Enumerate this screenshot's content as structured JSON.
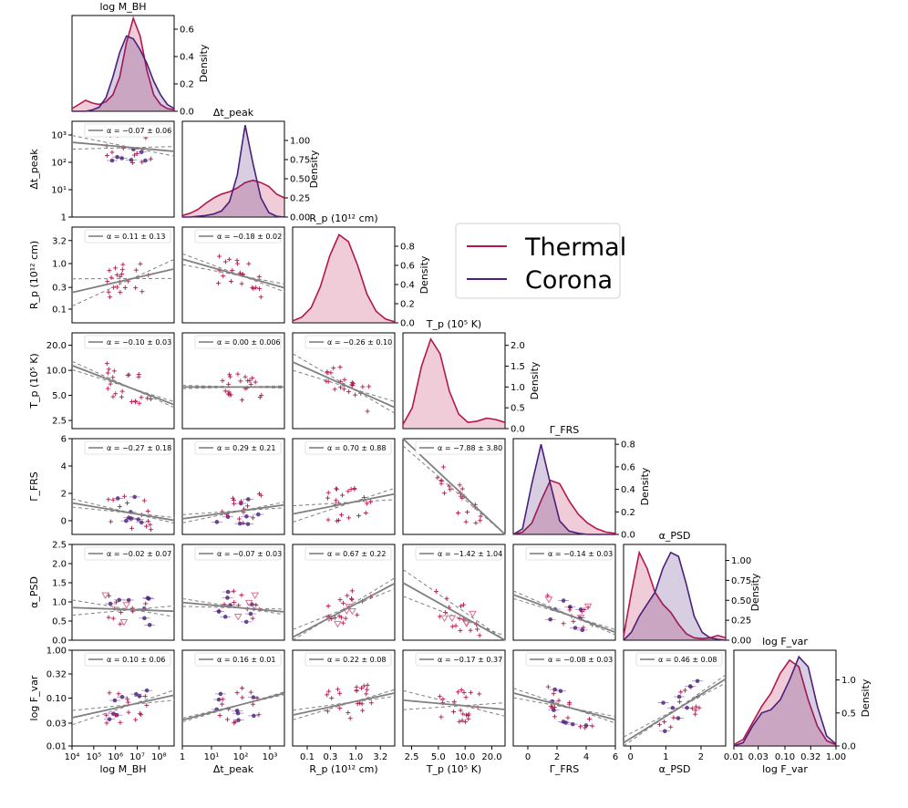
{
  "chart_data": {
    "type": "corner-plot",
    "colors": {
      "thermal": "#b5174b",
      "corona": "#4b1f7a",
      "fit": "#808080",
      "upper_limit": "#d4738c"
    },
    "legend": {
      "position": "upper-right",
      "entries": [
        {
          "name": "Thermal",
          "color": "#b5174b"
        },
        {
          "name": "Corona",
          "color": "#4b1f7a"
        }
      ]
    },
    "variables": [
      {
        "key": "mbh",
        "title": "log M_BH",
        "label": "log M_BH",
        "log": true,
        "range": [
          4,
          8.7
        ],
        "ticks": [
          4,
          5,
          6,
          7,
          8
        ],
        "tick_labels": [
          "10⁴",
          "10⁵",
          "10⁶",
          "10⁷",
          "10⁸"
        ],
        "density": {
          "max": 0.7,
          "ticks": [
            0,
            0.2,
            0.4,
            0.6
          ],
          "tick_labels": [
            "0.0",
            "0.2",
            "0.4",
            "0.6"
          ],
          "label": "Density",
          "thermal": [
            0.02,
            0.05,
            0.08,
            0.06,
            0.05,
            0.07,
            0.12,
            0.25,
            0.5,
            0.68,
            0.55,
            0.3,
            0.12,
            0.05,
            0.02,
            0.01
          ],
          "corona": [
            0.0,
            0.0,
            0.0,
            0.01,
            0.03,
            0.1,
            0.25,
            0.43,
            0.55,
            0.53,
            0.45,
            0.35,
            0.22,
            0.12,
            0.05,
            0.02
          ]
        }
      },
      {
        "key": "dtpeak",
        "title": "Δt_peak",
        "label": "Δt_peak",
        "log": true,
        "range": [
          0,
          3.5
        ],
        "ticks": [
          0,
          1,
          2,
          3
        ],
        "tick_labels": [
          "1",
          "10¹",
          "10²",
          "10³"
        ],
        "density": {
          "max": 1.25,
          "ticks": [
            0,
            0.25,
            0.5,
            0.75,
            1.0
          ],
          "tick_labels": [
            "0.00",
            "0.25",
            "0.50",
            "0.75",
            "1.00"
          ],
          "label": "Density",
          "thermal": [
            0.02,
            0.05,
            0.1,
            0.18,
            0.25,
            0.3,
            0.33,
            0.38,
            0.45,
            0.48,
            0.45,
            0.4,
            0.3,
            0.25
          ],
          "corona": [
            0.0,
            0.0,
            0.01,
            0.02,
            0.04,
            0.08,
            0.2,
            0.55,
            1.2,
            0.7,
            0.25,
            0.06,
            0.01,
            0.0
          ]
        }
      },
      {
        "key": "rp",
        "title": "R_p (10¹² cm)",
        "label": "R_p (10¹² cm)",
        "log": true,
        "range": [
          -1.3,
          0.8
        ],
        "ticks": [
          -1,
          -0.523,
          0,
          0.505
        ],
        "tick_labels": [
          "0.1",
          "0.3",
          "1.0",
          "3.2"
        ],
        "density": {
          "max": 1.0,
          "ticks": [
            0,
            0.2,
            0.4,
            0.6,
            0.8
          ],
          "tick_labels": [
            "0.0",
            "0.2",
            "0.4",
            "0.6",
            "0.8"
          ],
          "label": "Density",
          "thermal": [
            0.02,
            0.06,
            0.16,
            0.38,
            0.7,
            0.92,
            0.85,
            0.6,
            0.3,
            0.12,
            0.04,
            0.01
          ],
          "corona": []
        }
      },
      {
        "key": "tp",
        "title": "T_p (10⁵ K)",
        "label": "T_p (10⁵ K)",
        "log": true,
        "range": [
          0.3,
          1.45
        ],
        "ticks": [
          0.398,
          0.699,
          1.0,
          1.301
        ],
        "tick_labels": [
          "2.5",
          "5.0",
          "10.0",
          "20.0"
        ],
        "density": {
          "max": 2.3,
          "ticks": [
            0,
            0.5,
            1.0,
            1.5,
            2.0
          ],
          "tick_labels": [
            "0.0",
            "0.5",
            "1.0",
            "1.5",
            "2.0"
          ],
          "label": "Density",
          "thermal": [
            0.1,
            0.5,
            1.5,
            2.15,
            1.8,
            0.9,
            0.35,
            0.15,
            0.18,
            0.25,
            0.22,
            0.15
          ],
          "corona": []
        }
      },
      {
        "key": "gfrs",
        "title": "Γ_FRS",
        "label": "Γ_FRS",
        "log": false,
        "range": [
          -1,
          6
        ],
        "ticks": [
          0,
          2,
          4,
          6
        ],
        "tick_labels": [
          "0",
          "2",
          "4",
          "6"
        ],
        "density": {
          "max": 0.85,
          "ticks": [
            0,
            0.2,
            0.4,
            0.6,
            0.8
          ],
          "tick_labels": [
            "0.0",
            "0.2",
            "0.4",
            "0.6",
            "0.8"
          ],
          "label": "Density",
          "thermal": [
            0.0,
            0.02,
            0.1,
            0.3,
            0.48,
            0.45,
            0.3,
            0.18,
            0.1,
            0.05,
            0.02,
            0.01
          ],
          "corona": [
            0.0,
            0.05,
            0.45,
            0.8,
            0.45,
            0.12,
            0.03,
            0.01,
            0.0,
            0.0,
            0.0,
            0.0
          ]
        },
        "row_range": [
          -1,
          6
        ],
        "row_ticks": [
          0,
          2,
          4,
          6
        ],
        "row_tick_labels": [
          "0",
          "2",
          "4",
          "6"
        ]
      },
      {
        "key": "apsd",
        "title": "α_PSD",
        "label": "α_PSD",
        "log": false,
        "range": [
          -0.2,
          2.7
        ],
        "ticks": [
          0,
          1,
          2
        ],
        "tick_labels": [
          "0",
          "1",
          "2"
        ],
        "density": {
          "max": 1.2,
          "ticks": [
            0,
            0.25,
            0.5,
            0.75,
            1.0
          ],
          "tick_labels": [
            "0.00",
            "0.25",
            "0.50",
            "0.75",
            "1.00"
          ],
          "label": "Density",
          "thermal": [
            0.05,
            0.6,
            1.1,
            0.9,
            0.6,
            0.45,
            0.35,
            0.2,
            0.08,
            0.03,
            0.02,
            0.03,
            0.06,
            0.03
          ],
          "corona": [
            0.0,
            0.1,
            0.3,
            0.45,
            0.6,
            0.9,
            1.1,
            1.05,
            0.7,
            0.3,
            0.1,
            0.03,
            0.01,
            0.0
          ]
        },
        "row_range": [
          0,
          2.5
        ],
        "row_ticks": [
          0,
          0.5,
          1.0,
          1.5,
          2.0,
          2.5
        ],
        "row_tick_labels": [
          "0.0",
          "0.5",
          "1.0",
          "1.5",
          "2.0",
          "2.5"
        ]
      },
      {
        "key": "fvar",
        "title": "log F_var",
        "label": "log F_var",
        "log": true,
        "range": [
          -2,
          0
        ],
        "ticks": [
          -2,
          -1.523,
          -1,
          -0.495,
          0
        ],
        "tick_labels": [
          "0.01",
          "0.03",
          "0.10",
          "0.32",
          "1.00"
        ],
        "density": {
          "max": 1.45,
          "ticks": [
            0,
            0.5,
            1.0
          ],
          "tick_labels": [
            "0.0",
            "0.5",
            "1.0"
          ],
          "label": "Density",
          "thermal": [
            0.02,
            0.1,
            0.35,
            0.6,
            0.8,
            1.1,
            1.3,
            1.2,
            0.7,
            0.3,
            0.08,
            0.02
          ],
          "corona": [
            0.0,
            0.05,
            0.3,
            0.5,
            0.55,
            0.7,
            1.0,
            1.35,
            1.2,
            0.6,
            0.15,
            0.03
          ]
        }
      }
    ],
    "fits": [
      {
        "row": 1,
        "col": 0,
        "label": "α = −0.07 ± 0.06",
        "slope": -0.07,
        "yc": 2.55,
        "band": 0.25
      },
      {
        "row": 2,
        "col": 0,
        "label": "α = 0.11 ± 0.13",
        "slope": 0.11,
        "yc": -0.35,
        "band": 0.3
      },
      {
        "row": 2,
        "col": 1,
        "label": "α = −0.18 ± 0.02",
        "slope": -0.18,
        "yc": -0.25,
        "band": 0.12
      },
      {
        "row": 3,
        "col": 0,
        "label": "α = −0.10 ± 0.03",
        "slope": -0.1,
        "yc": 0.8,
        "band": 0.05
      },
      {
        "row": 3,
        "col": 1,
        "label": "α = 0.00 ± 0.006",
        "slope": 0.0,
        "yc": 0.8,
        "band": 0.02
      },
      {
        "row": 3,
        "col": 2,
        "label": "α = −0.26 ± 0.10",
        "slope": -0.26,
        "yc": 0.8,
        "band": 0.1
      },
      {
        "row": 4,
        "col": 0,
        "label": "α = −0.27 ± 0.18",
        "slope": -0.27,
        "yc": 0.6,
        "band": 0.3
      },
      {
        "row": 4,
        "col": 1,
        "label": "α = 0.29 ± 0.21",
        "slope": 0.29,
        "yc": 0.7,
        "band": 0.3
      },
      {
        "row": 4,
        "col": 2,
        "label": "α = 0.70 ± 0.88",
        "slope": 0.7,
        "yc": 1.3,
        "band": 0.6
      },
      {
        "row": 4,
        "col": 3,
        "label": "α = −7.88 ± 3.80",
        "slope": -7.88,
        "yc": 1.5,
        "band": 1.0
      },
      {
        "row": 5,
        "col": 0,
        "label": "α = −0.02 ± 0.07",
        "slope": -0.02,
        "yc": 0.8,
        "band": 0.2
      },
      {
        "row": 5,
        "col": 1,
        "label": "α = −0.07 ± 0.03",
        "slope": -0.07,
        "yc": 0.85,
        "band": 0.1
      },
      {
        "row": 5,
        "col": 2,
        "label": "α = 0.67 ± 0.22",
        "slope": 0.67,
        "yc": 0.85,
        "band": 0.2
      },
      {
        "row": 5,
        "col": 3,
        "label": "α = −1.42 ± 1.04",
        "slope": -1.42,
        "yc": 0.6,
        "band": 0.35
      },
      {
        "row": 5,
        "col": 4,
        "label": "α = −0.14 ± 0.03",
        "slope": -0.14,
        "yc": 0.65,
        "band": 0.1
      },
      {
        "row": 6,
        "col": 0,
        "label": "α = 0.10 ± 0.06",
        "slope": 0.1,
        "yc": -1.15,
        "band": 0.15
      },
      {
        "row": 6,
        "col": 1,
        "label": "α = 0.16 ± 0.01",
        "slope": 0.16,
        "yc": -1.15,
        "band": 0.04
      },
      {
        "row": 6,
        "col": 2,
        "label": "α = 0.22 ± 0.08",
        "slope": 0.22,
        "yc": -1.1,
        "band": 0.1
      },
      {
        "row": 6,
        "col": 3,
        "label": "α = −0.17 ± 0.37",
        "slope": -0.17,
        "yc": -1.15,
        "band": 0.2
      },
      {
        "row": 6,
        "col": 4,
        "label": "α = −0.08 ± 0.03",
        "slope": -0.08,
        "yc": -1.2,
        "band": 0.1
      },
      {
        "row": 6,
        "col": 5,
        "label": "α = 0.46 ± 0.08",
        "slope": 0.46,
        "yc": -1.2,
        "band": 0.12
      }
    ]
  }
}
